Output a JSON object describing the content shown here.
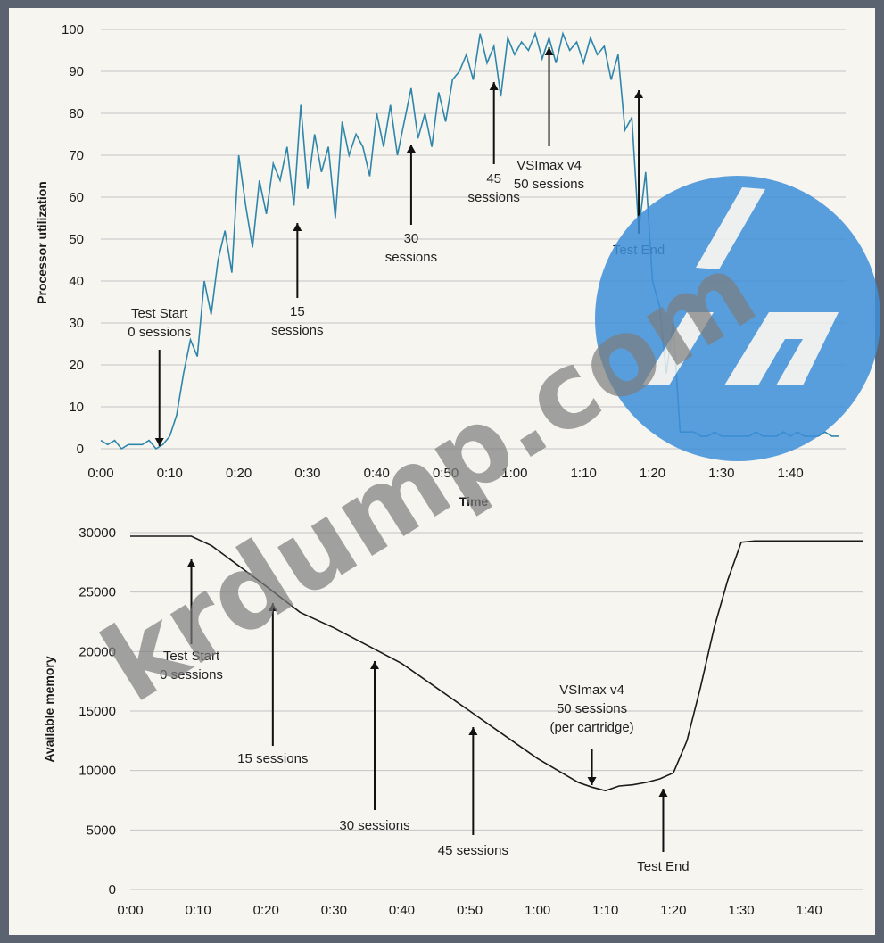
{
  "chart_data": [
    {
      "type": "line",
      "title": "",
      "xlabel": "Time",
      "ylabel": "Processor utilization",
      "x_ticks": [
        "0:00",
        "0:10",
        "0:20",
        "0:30",
        "0:40",
        "0:50",
        "1:00",
        "1:10",
        "1:20",
        "1:30",
        "1:40"
      ],
      "y_ticks": [
        "0",
        "10",
        "20",
        "30",
        "40",
        "50",
        "60",
        "70",
        "80",
        "90",
        "100"
      ],
      "xlim": [
        0,
        108
      ],
      "ylim": [
        0,
        100
      ],
      "grid": true,
      "color": "#2f86aa",
      "series": [
        {
          "x": [
            0,
            1,
            2,
            3,
            4,
            5,
            6,
            7,
            8,
            9,
            10,
            11,
            12,
            13,
            14,
            15,
            16,
            17,
            18,
            19,
            20,
            21,
            22,
            23,
            24,
            25,
            26,
            27,
            28,
            29,
            30,
            31,
            32,
            33,
            34,
            35,
            36,
            37,
            38,
            39,
            40,
            41,
            42,
            43,
            44,
            45,
            46,
            47,
            48,
            49,
            50,
            51,
            52,
            53,
            54,
            55,
            56,
            57,
            58,
            59,
            60,
            61,
            62,
            63,
            64,
            65,
            66,
            67,
            68,
            69,
            70,
            71,
            72,
            73,
            74,
            75,
            76,
            77,
            78,
            79,
            80,
            81,
            82,
            83,
            84,
            85,
            86,
            87,
            88,
            89,
            90,
            91,
            92,
            93,
            94,
            95,
            96,
            97,
            98,
            99,
            100,
            101,
            102,
            103,
            104,
            105,
            106,
            107
          ],
          "y": [
            2,
            1,
            2,
            0,
            1,
            1,
            1,
            2,
            0,
            1,
            3,
            8,
            18,
            26,
            22,
            40,
            32,
            45,
            52,
            42,
            70,
            58,
            48,
            64,
            56,
            68,
            64,
            72,
            58,
            82,
            62,
            75,
            66,
            72,
            55,
            78,
            70,
            75,
            72,
            65,
            80,
            72,
            82,
            70,
            78,
            86,
            74,
            80,
            72,
            85,
            78,
            88,
            90,
            94,
            88,
            99,
            92,
            96,
            84,
            98,
            94,
            97,
            95,
            99,
            93,
            98,
            92,
            99,
            95,
            97,
            92,
            98,
            94,
            96,
            88,
            94,
            76,
            79,
            52,
            66,
            40,
            34,
            18,
            30,
            4,
            4,
            4,
            3,
            3,
            4,
            3,
            3,
            3,
            3,
            3,
            4,
            3,
            3,
            3,
            4,
            3,
            4,
            3,
            3,
            3,
            4,
            3,
            3
          ]
        }
      ],
      "annotations": [
        {
          "lines": [
            "Test Start",
            "0 sessions"
          ]
        },
        {
          "lines": [
            "15",
            "sessions"
          ]
        },
        {
          "lines": [
            "30",
            "sessions"
          ]
        },
        {
          "lines": [
            "45",
            "sessions"
          ]
        },
        {
          "lines": [
            "VSImax v4",
            "50 sessions"
          ]
        },
        {
          "lines": [
            "Test End"
          ]
        }
      ]
    },
    {
      "type": "line",
      "title": "",
      "xlabel": "",
      "ylabel": "Available memory",
      "x_ticks": [
        "0:00",
        "0:10",
        "0:20",
        "0:30",
        "0:40",
        "0:50",
        "1:00",
        "1:10",
        "1:20",
        "1:30",
        "1:40"
      ],
      "y_ticks": [
        "0",
        "5000",
        "10000",
        "15000",
        "20000",
        "25000",
        "30000"
      ],
      "xlim": [
        0,
        108
      ],
      "ylim": [
        0,
        30000
      ],
      "grid": true,
      "color": "#1a1a1a",
      "series": [
        {
          "x": [
            0,
            5,
            9,
            12,
            16,
            20,
            25,
            30,
            35,
            40,
            45,
            50,
            55,
            60,
            63,
            66,
            68,
            70,
            72,
            74,
            76,
            78,
            80,
            82,
            84,
            86,
            88,
            90,
            92,
            94,
            96,
            98,
            100,
            104,
            108
          ],
          "y": [
            29700,
            29700,
            29700,
            28900,
            27200,
            25500,
            23300,
            22000,
            20500,
            19000,
            17000,
            15000,
            13000,
            11000,
            10000,
            9000,
            8600,
            8300,
            8700,
            8800,
            9000,
            9300,
            9800,
            12500,
            17000,
            22000,
            26000,
            29200,
            29300,
            29300,
            29300,
            29300,
            29300,
            29300,
            29300
          ]
        }
      ],
      "annotations": [
        {
          "lines": [
            "Test Start",
            "0 sessions"
          ]
        },
        {
          "lines": [
            "15 sessions"
          ]
        },
        {
          "lines": [
            "30 sessions"
          ]
        },
        {
          "lines": [
            "45 sessions"
          ]
        },
        {
          "lines": [
            "VSImax v4",
            "50 sessions",
            "(per cartridge)"
          ]
        },
        {
          "lines": [
            "Test End"
          ]
        }
      ]
    }
  ],
  "watermark": {
    "text": "krdump.com",
    "logo_color": "#3e8fd9",
    "logo_icon": "hp-logo-icon"
  }
}
